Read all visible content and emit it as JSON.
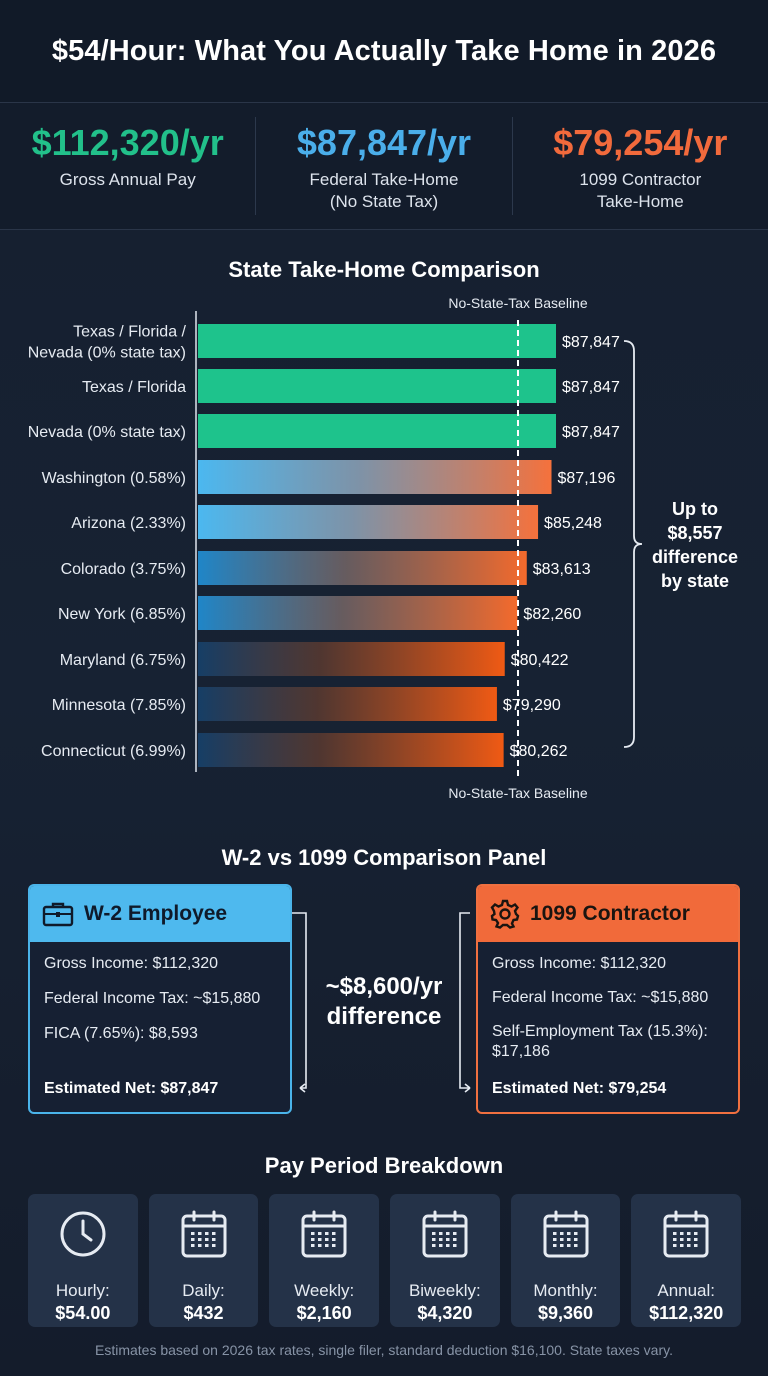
{
  "title": "$54/Hour: What You Actually Take Home in 2026",
  "stats": [
    {
      "value": "$112,320/yr",
      "label_lines": [
        "Gross Annual Pay"
      ],
      "color": "#22c08a"
    },
    {
      "value": "$87,847/yr",
      "label_lines": [
        "Federal Take-Home",
        "(No State Tax)"
      ],
      "color": "#4aaeea"
    },
    {
      "value": "$79,254/yr",
      "label_lines": [
        "1099 Contractor",
        "Take-Home"
      ],
      "color": "#f26a3c"
    }
  ],
  "state_section": {
    "title": "State Take-Home Comparison",
    "bracket_label": [
      "Up to",
      "$8,557",
      "difference",
      "by state"
    ]
  },
  "chart_data": {
    "type": "bar",
    "orientation": "horizontal",
    "title": "State Take-Home Comparison",
    "categories": [
      [
        "Texas / Florida /",
        "Nevada (0% state tax)"
      ],
      [
        "Texas / Florida"
      ],
      [
        "Nevada (0% state tax)"
      ],
      [
        "Washington (0.58%)"
      ],
      [
        "Arizona (2.33%)"
      ],
      [
        "Colorado (3.75%)"
      ],
      [
        "New York (6.85%)"
      ],
      [
        "Maryland (6.75%)"
      ],
      [
        "Minnesota (7.85%)"
      ],
      [
        "Connecticut (6.99%)"
      ]
    ],
    "values": [
      87847,
      87847,
      87847,
      87196,
      85248,
      83613,
      82260,
      80422,
      79290,
      80262
    ],
    "value_labels": [
      "$87,847",
      "$87,847",
      "$87,847",
      "$87,196",
      "$85,248",
      "$83,613",
      "$82,260",
      "$80,422",
      "$79,290",
      "$80,262"
    ],
    "baseline_label": "No-State-Tax Baseline",
    "legend": "none",
    "grid": false,
    "colors": {
      "no_tax": "#1ec38c",
      "low_tax": "#4bb8f0",
      "high_tax": "#f0641e"
    }
  },
  "comparison": {
    "title": "W-2 vs 1099 Comparison Panel",
    "difference": [
      "~$8,600/yr",
      "difference"
    ],
    "w2": {
      "title": "W-2 Employee",
      "lines": [
        "Gross Income: $112,320",
        "Federal Income Tax: ~$15,880",
        "FICA (7.65%): $8,593"
      ],
      "net": "Estimated Net: $87,847"
    },
    "contractor": {
      "title": "1099 Contractor",
      "lines": [
        "Gross Income: $112,320",
        "Federal Income Tax: ~$15,880",
        "Self-Employment Tax (15.3%): $17,186"
      ],
      "net": "Estimated Net: $79,254"
    }
  },
  "pay_periods": {
    "title": "Pay Period Breakdown",
    "items": [
      {
        "label": "Hourly:",
        "value": "$54.00",
        "icon": "clock-icon"
      },
      {
        "label": "Daily:",
        "value": "$432",
        "icon": "calendar-icon"
      },
      {
        "label": "Weekly:",
        "value": "$2,160",
        "icon": "calendar-icon"
      },
      {
        "label": "Biweekly:",
        "value": "$4,320",
        "icon": "calendar-icon"
      },
      {
        "label": "Monthly:",
        "value": "$9,360",
        "icon": "calendar-icon"
      },
      {
        "label": "Annual:",
        "value": "$112,320",
        "icon": "calendar-icon"
      }
    ]
  },
  "footnote": "Estimates based on 2026 tax rates, single filer, standard deduction $16,100. State taxes vary."
}
